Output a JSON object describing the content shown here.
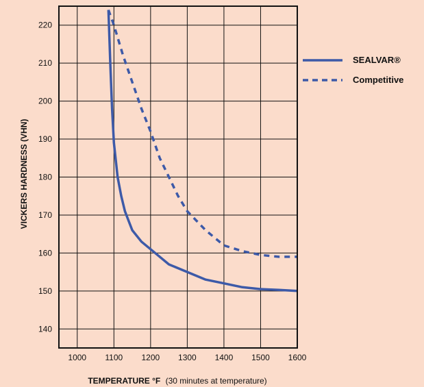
{
  "chart_data": {
    "type": "line",
    "title": "",
    "xlabel": {
      "bold": "TEMPERATURE °F",
      "normal": "(30 minutes at temperature)"
    },
    "ylabel": "VICKERS HARDNESS (VHN)",
    "xlim": [
      950,
      1600
    ],
    "ylim": [
      135,
      225
    ],
    "x_ticks": [
      1000,
      1100,
      1200,
      1300,
      1400,
      1500,
      1600
    ],
    "y_ticks": [
      140,
      150,
      160,
      170,
      180,
      190,
      200,
      210,
      220
    ],
    "grid": true,
    "legend_position": "right",
    "series": [
      {
        "name": "SEALVAR®",
        "style": "solid",
        "color": "#3d5aa8",
        "x": [
          1085,
          1090,
          1095,
          1100,
          1110,
          1120,
          1130,
          1140,
          1150,
          1175,
          1200,
          1250,
          1300,
          1350,
          1400,
          1450,
          1500,
          1550,
          1600
        ],
        "y": [
          224,
          210,
          198,
          189,
          180,
          175,
          171,
          168.5,
          166,
          163,
          161,
          157,
          155,
          153,
          152,
          151,
          150.5,
          150.3,
          150
        ]
      },
      {
        "name": "Competitive",
        "style": "dashed",
        "color": "#3d5aa8",
        "x": [
          1085,
          1100,
          1125,
          1150,
          1175,
          1200,
          1225,
          1250,
          1275,
          1300,
          1350,
          1400,
          1450,
          1500,
          1550,
          1600
        ],
        "y": [
          224,
          220,
          212,
          205,
          198,
          192,
          185,
          180,
          175,
          171,
          166,
          162,
          160.5,
          159.5,
          159,
          159
        ]
      }
    ]
  }
}
